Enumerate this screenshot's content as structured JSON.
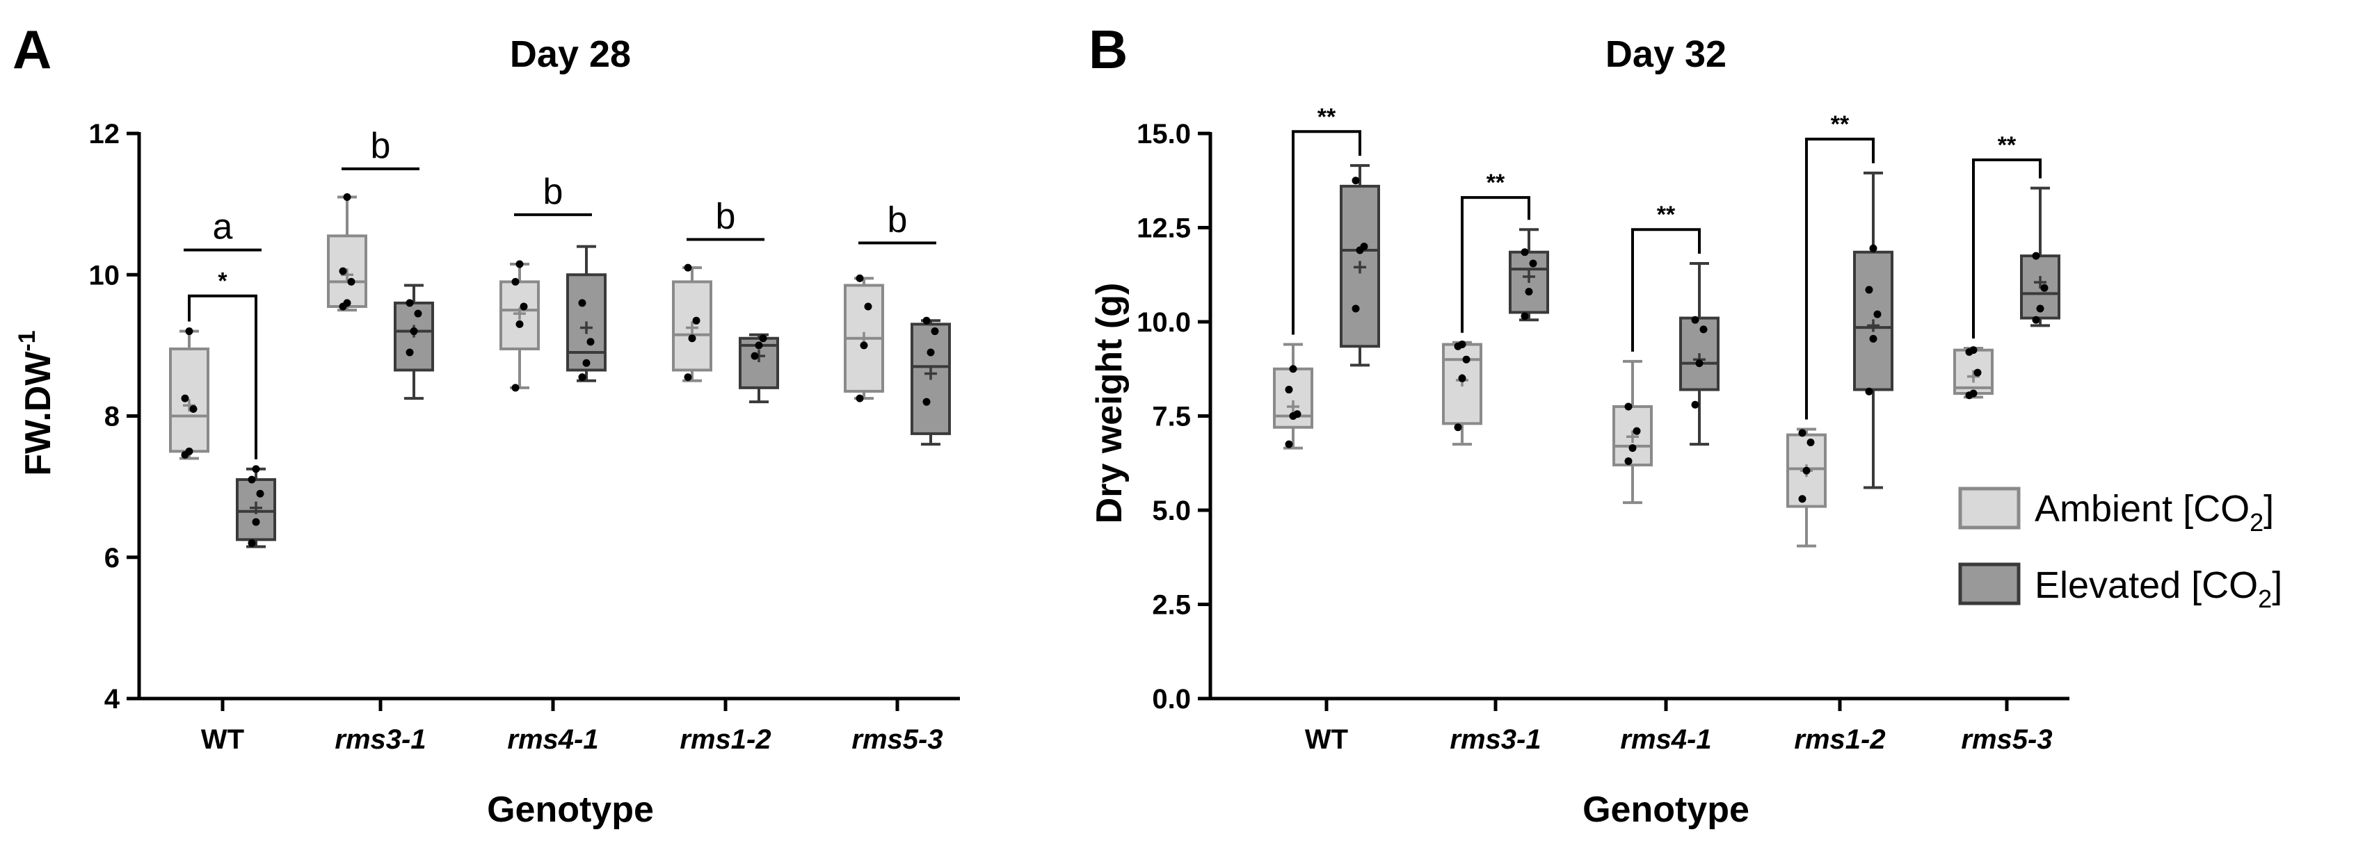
{
  "colors": {
    "ambient_fill": "#d9d9d9",
    "ambient_stroke": "#8a8a8a",
    "elevated_fill": "#999999",
    "elevated_stroke": "#3a3a3a",
    "axis": "#000000"
  },
  "legend": {
    "ambient": {
      "text": "Ambient [CO",
      "sub": "2",
      "close": "]"
    },
    "elevated": {
      "text": "Elevated [CO",
      "sub": "2",
      "close": "]"
    }
  },
  "chart_data": [
    {
      "panel": "A",
      "type": "box",
      "title": "Day 28",
      "xlabel": "Genotype",
      "ylabel": {
        "base": "FW.DW",
        "sup": "-1"
      },
      "ylim": [
        4,
        12
      ],
      "yticks": [
        "4",
        "6",
        "8",
        "10",
        "12"
      ],
      "categories": [
        "WT",
        "rms3-1",
        "rms4-1",
        "rms1-2",
        "rms5-3"
      ],
      "series": [
        {
          "name": "Ambient [CO2]",
          "boxes": [
            {
              "min": 7.4,
              "q1": 7.5,
              "median": 8.0,
              "q3": 8.95,
              "max": 9.2,
              "mean": 8.15,
              "points": [
                7.45,
                7.5,
                8.1,
                8.25,
                9.2
              ]
            },
            {
              "min": 9.5,
              "q1": 9.55,
              "median": 9.9,
              "q3": 10.55,
              "max": 11.1,
              "mean": 10.0,
              "points": [
                9.55,
                9.6,
                9.9,
                10.05,
                11.1
              ]
            },
            {
              "min": 8.4,
              "q1": 8.95,
              "median": 9.5,
              "q3": 9.9,
              "max": 10.15,
              "mean": 9.45,
              "points": [
                8.4,
                9.3,
                9.55,
                9.9,
                10.15
              ]
            },
            {
              "min": 8.5,
              "q1": 8.65,
              "median": 9.15,
              "q3": 9.9,
              "max": 10.1,
              "mean": 9.25,
              "points": [
                8.55,
                9.1,
                9.35,
                10.1
              ]
            },
            {
              "min": 8.25,
              "q1": 8.35,
              "median": 9.1,
              "q3": 9.85,
              "max": 9.95,
              "mean": 9.1,
              "points": [
                8.25,
                9.0,
                9.55,
                9.95
              ]
            }
          ]
        },
        {
          "name": "Elevated [CO2]",
          "boxes": [
            {
              "min": 6.15,
              "q1": 6.25,
              "median": 6.65,
              "q3": 7.1,
              "max": 7.25,
              "mean": 6.7,
              "points": [
                6.2,
                6.5,
                6.9,
                7.1,
                7.25
              ]
            },
            {
              "min": 8.25,
              "q1": 8.65,
              "median": 9.2,
              "q3": 9.6,
              "max": 9.85,
              "mean": 9.2,
              "points": [
                8.9,
                9.2,
                9.45,
                9.6
              ]
            },
            {
              "min": 8.5,
              "q1": 8.65,
              "median": 8.9,
              "q3": 10.0,
              "max": 10.4,
              "mean": 9.25,
              "points": [
                8.55,
                8.75,
                9.05,
                9.6
              ]
            },
            {
              "min": 8.2,
              "q1": 8.4,
              "median": 9.0,
              "q3": 9.1,
              "max": 9.15,
              "mean": 8.85,
              "points": [
                8.85,
                9.0,
                9.1
              ]
            },
            {
              "min": 7.6,
              "q1": 7.75,
              "median": 8.7,
              "q3": 9.3,
              "max": 9.35,
              "mean": 8.6,
              "points": [
                8.2,
                8.9,
                9.2,
                9.35
              ]
            }
          ]
        }
      ],
      "letters": [
        {
          "category": 0,
          "label": "a",
          "y": 10.35
        },
        {
          "category": 1,
          "label": "b",
          "y": 11.5
        },
        {
          "category": 2,
          "label": "b",
          "y": 10.85
        },
        {
          "category": 3,
          "label": "b",
          "y": 10.5
        },
        {
          "category": 4,
          "label": "b",
          "y": 10.45
        }
      ],
      "brackets": [
        {
          "category": 0,
          "label": "*",
          "y": 9.7
        }
      ]
    },
    {
      "panel": "B",
      "type": "box",
      "title": "Day 32",
      "xlabel": "Genotype",
      "ylabel": {
        "base": "Dry weight (g)",
        "sup": ""
      },
      "ylim": [
        0,
        15
      ],
      "yticks": [
        "0.0",
        "2.5",
        "5.0",
        "7.5",
        "10.0",
        "12.5",
        "15.0"
      ],
      "categories": [
        "WT",
        "rms3-1",
        "rms4-1",
        "rms1-2",
        "rms5-3"
      ],
      "series": [
        {
          "name": "Ambient [CO2]",
          "boxes": [
            {
              "min": 6.65,
              "q1": 7.2,
              "median": 7.5,
              "q3": 8.75,
              "max": 9.4,
              "mean": 7.75,
              "points": [
                6.75,
                7.5,
                7.55,
                8.2,
                8.75
              ]
            },
            {
              "min": 6.75,
              "q1": 7.3,
              "median": 9.0,
              "q3": 9.4,
              "max": 9.45,
              "mean": 8.45,
              "points": [
                7.2,
                8.5,
                9.0,
                9.35,
                9.4
              ]
            },
            {
              "min": 5.2,
              "q1": 6.2,
              "median": 6.7,
              "q3": 7.75,
              "max": 8.95,
              "mean": 6.95,
              "points": [
                6.3,
                6.65,
                7.1,
                7.75
              ]
            },
            {
              "min": 4.05,
              "q1": 5.1,
              "median": 6.1,
              "q3": 7.0,
              "max": 7.15,
              "mean": 6.05,
              "points": [
                5.3,
                6.05,
                6.8,
                7.05
              ]
            },
            {
              "min": 8.0,
              "q1": 8.1,
              "median": 8.25,
              "q3": 9.25,
              "max": 9.3,
              "mean": 8.55,
              "points": [
                8.05,
                8.1,
                8.65,
                9.2,
                9.25
              ]
            }
          ]
        },
        {
          "name": "Elevated [CO2]",
          "boxes": [
            {
              "min": 8.85,
              "q1": 9.35,
              "median": 11.9,
              "q3": 13.6,
              "max": 14.15,
              "mean": 11.45,
              "points": [
                10.35,
                11.9,
                12.0,
                13.75
              ]
            },
            {
              "min": 10.05,
              "q1": 10.25,
              "median": 11.4,
              "q3": 11.85,
              "max": 12.45,
              "mean": 11.2,
              "points": [
                10.15,
                10.8,
                11.55,
                11.85
              ]
            },
            {
              "min": 6.75,
              "q1": 8.2,
              "median": 8.9,
              "q3": 10.1,
              "max": 11.55,
              "mean": 9.0,
              "points": [
                7.8,
                8.9,
                9.8,
                10.05
              ]
            },
            {
              "min": 5.6,
              "q1": 8.2,
              "median": 9.85,
              "q3": 11.85,
              "max": 13.95,
              "mean": 9.9,
              "points": [
                8.15,
                9.55,
                10.2,
                10.85,
                11.95
              ]
            },
            {
              "min": 9.9,
              "q1": 10.1,
              "median": 10.75,
              "q3": 11.75,
              "max": 13.55,
              "mean": 11.05,
              "points": [
                10.05,
                10.35,
                10.9,
                11.75
              ]
            }
          ]
        }
      ],
      "letters": [],
      "brackets": [
        {
          "category": 0,
          "label": "**",
          "y": 15.05
        },
        {
          "category": 1,
          "label": "**",
          "y": 13.3
        },
        {
          "category": 2,
          "label": "**",
          "y": 12.45
        },
        {
          "category": 3,
          "label": "**",
          "y": 14.85
        },
        {
          "category": 4,
          "label": "**",
          "y": 14.3
        }
      ]
    }
  ]
}
